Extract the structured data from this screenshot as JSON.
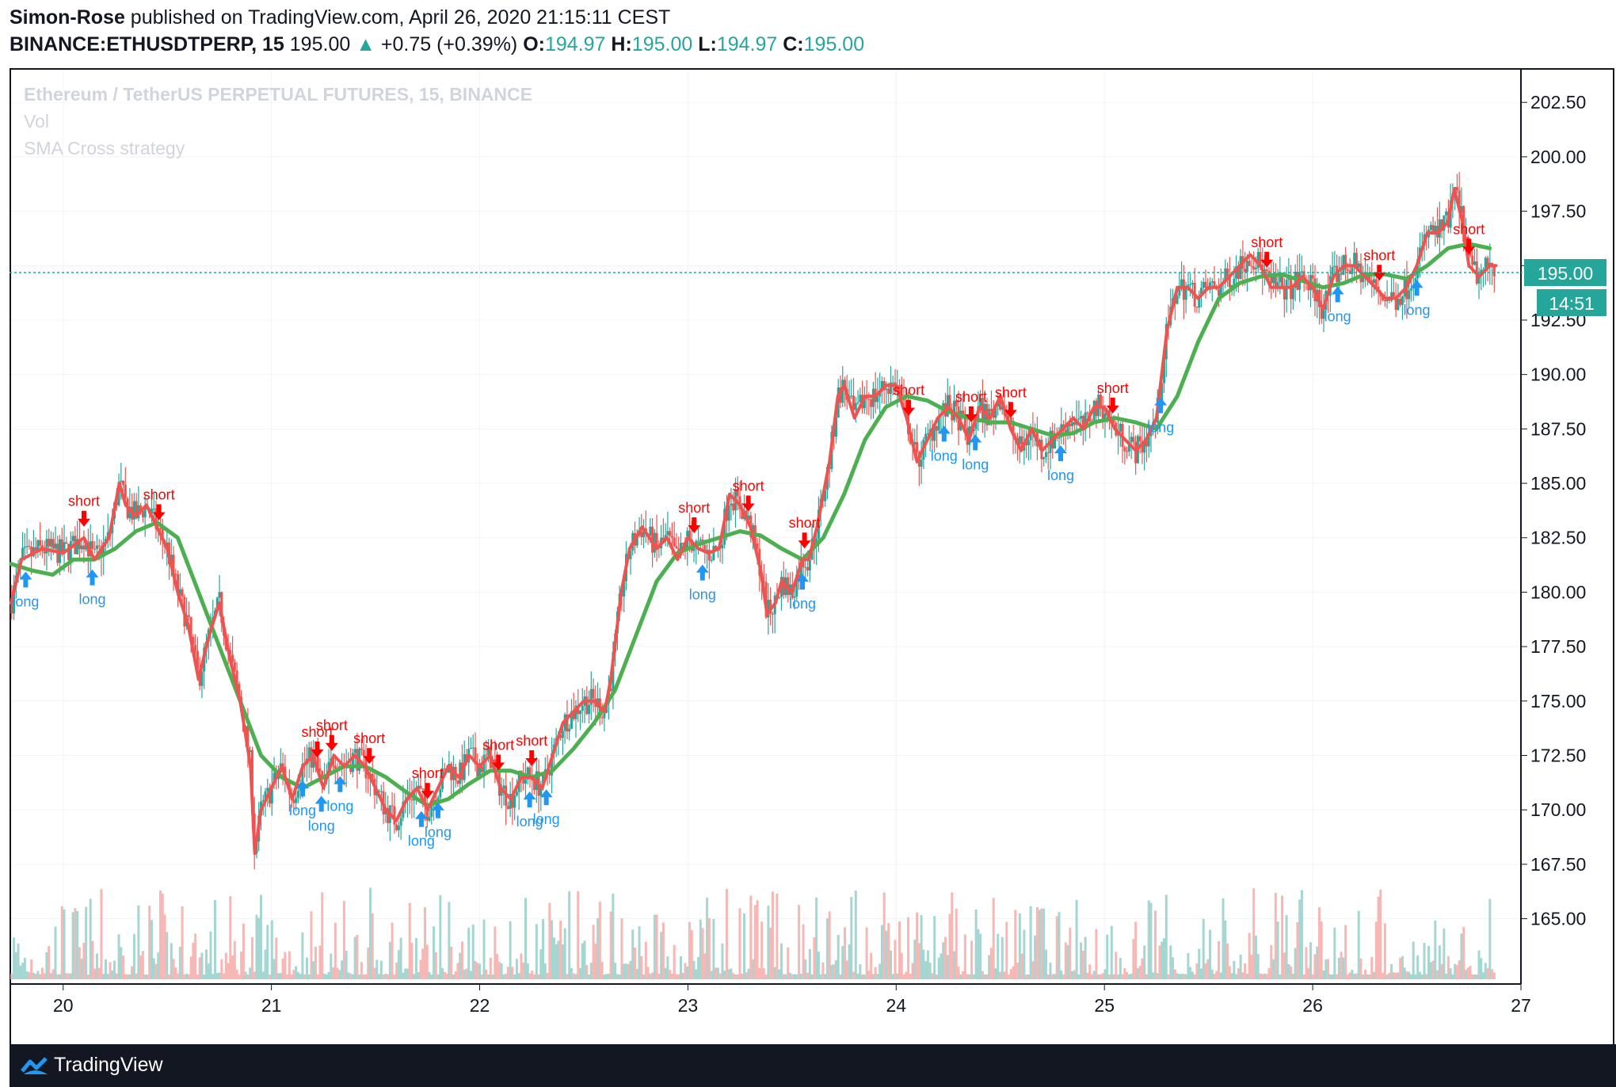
{
  "header": {
    "author": "Simon-Rose",
    "published_text": " published on TradingView.com, April 26, 2020 21:15:11 CEST",
    "symbol": "BINANCE:ETHUSDTPERP, 15",
    "last": "195.00",
    "change": "+0.75 (+0.39%)",
    "o_label": "O:",
    "o_value": "194.97",
    "h_label": "H:",
    "h_value": "195.00",
    "l_label": "L:",
    "l_value": "194.97",
    "c_label": "C:",
    "c_value": "195.00"
  },
  "legend": {
    "title": "Ethereum / TetherUS PERPETUAL FUTURES, 15, BINANCE",
    "volume": "Vol",
    "strategy": "SMA Cross strategy"
  },
  "price_badge": "195.00",
  "countdown_badge": "14:51",
  "footer": {
    "brand": "TradingView"
  },
  "colors": {
    "up": "#26a69a",
    "down": "#ef5350",
    "fast_ma": "#ef5350",
    "slow_ma": "#4caf50",
    "long": "#2196f3",
    "short": "#ff0000"
  },
  "chart_data": {
    "type": "line",
    "yticks": [
      "202.50",
      "200.00",
      "197.50",
      "195.00",
      "192.50",
      "190.00",
      "187.50",
      "185.00",
      "182.50",
      "180.00",
      "177.50",
      "175.00",
      "172.50",
      "170.00",
      "167.50",
      "165.00"
    ],
    "xticks": [
      "20",
      "21",
      "22",
      "23",
      "24",
      "25",
      "26",
      "27"
    ],
    "ylim": [
      162.0,
      204.0
    ],
    "xlim": [
      19.75,
      27.0
    ],
    "current_price": 195.0,
    "fast_ma": [
      [
        19.75,
        179.5
      ],
      [
        19.8,
        181.5
      ],
      [
        19.9,
        182.0
      ],
      [
        20.0,
        181.8
      ],
      [
        20.1,
        182.5
      ],
      [
        20.15,
        181.5
      ],
      [
        20.22,
        182.5
      ],
      [
        20.27,
        185.0
      ],
      [
        20.3,
        184.0
      ],
      [
        20.35,
        183.5
      ],
      [
        20.4,
        184.0
      ],
      [
        20.45,
        183.0
      ],
      [
        20.5,
        182.0
      ],
      [
        20.55,
        180.0
      ],
      [
        20.6,
        178.5
      ],
      [
        20.65,
        176.0
      ],
      [
        20.7,
        178.0
      ],
      [
        20.75,
        179.5
      ],
      [
        20.8,
        177.0
      ],
      [
        20.85,
        175.0
      ],
      [
        20.9,
        172.0
      ],
      [
        20.92,
        168.0
      ],
      [
        20.95,
        170.0
      ],
      [
        21.0,
        171.0
      ],
      [
        21.05,
        172.0
      ],
      [
        21.1,
        170.5
      ],
      [
        21.15,
        172.0
      ],
      [
        21.2,
        172.5
      ],
      [
        21.25,
        171.0
      ],
      [
        21.3,
        172.5
      ],
      [
        21.35,
        172.0
      ],
      [
        21.4,
        172.5
      ],
      [
        21.45,
        172.0
      ],
      [
        21.5,
        171.0
      ],
      [
        21.55,
        170.0
      ],
      [
        21.6,
        169.5
      ],
      [
        21.65,
        170.5
      ],
      [
        21.7,
        171.0
      ],
      [
        21.75,
        170.0
      ],
      [
        21.8,
        171.0
      ],
      [
        21.85,
        172.0
      ],
      [
        21.9,
        171.5
      ],
      [
        21.95,
        172.5
      ],
      [
        22.0,
        172.0
      ],
      [
        22.05,
        172.5
      ],
      [
        22.1,
        171.0
      ],
      [
        22.15,
        170.5
      ],
      [
        22.2,
        171.5
      ],
      [
        22.25,
        171.5
      ],
      [
        22.3,
        171.0
      ],
      [
        22.35,
        172.5
      ],
      [
        22.4,
        174.0
      ],
      [
        22.45,
        174.5
      ],
      [
        22.5,
        175.0
      ],
      [
        22.55,
        175.0
      ],
      [
        22.6,
        174.5
      ],
      [
        22.63,
        176.0
      ],
      [
        22.68,
        180.0
      ],
      [
        22.72,
        182.0
      ],
      [
        22.78,
        183.0
      ],
      [
        22.85,
        182.0
      ],
      [
        22.9,
        182.5
      ],
      [
        22.95,
        181.5
      ],
      [
        23.0,
        182.5
      ],
      [
        23.05,
        182.0
      ],
      [
        23.1,
        181.8
      ],
      [
        23.15,
        182.0
      ],
      [
        23.2,
        184.5
      ],
      [
        23.25,
        184.0
      ],
      [
        23.3,
        183.0
      ],
      [
        23.35,
        181.0
      ],
      [
        23.38,
        179.0
      ],
      [
        23.42,
        179.5
      ],
      [
        23.45,
        180.5
      ],
      [
        23.5,
        180.0
      ],
      [
        23.55,
        181.5
      ],
      [
        23.58,
        181.5
      ],
      [
        23.62,
        183.0
      ],
      [
        23.68,
        186.0
      ],
      [
        23.72,
        189.0
      ],
      [
        23.75,
        189.5
      ],
      [
        23.8,
        188.0
      ],
      [
        23.85,
        189.0
      ],
      [
        23.9,
        189.0
      ],
      [
        23.95,
        189.5
      ],
      [
        24.0,
        189.5
      ],
      [
        24.05,
        188.0
      ],
      [
        24.1,
        186.0
      ],
      [
        24.15,
        187.0
      ],
      [
        24.2,
        188.0
      ],
      [
        24.25,
        188.5
      ],
      [
        24.3,
        188.0
      ],
      [
        24.35,
        187.0
      ],
      [
        24.4,
        188.5
      ],
      [
        24.45,
        188.0
      ],
      [
        24.5,
        189.0
      ],
      [
        24.55,
        187.5
      ],
      [
        24.6,
        186.5
      ],
      [
        24.65,
        187.5
      ],
      [
        24.7,
        186.5
      ],
      [
        24.75,
        187.0
      ],
      [
        24.8,
        187.5
      ],
      [
        24.85,
        188.0
      ],
      [
        24.9,
        187.5
      ],
      [
        24.95,
        188.5
      ],
      [
        25.0,
        188.5
      ],
      [
        25.05,
        187.5
      ],
      [
        25.1,
        187.0
      ],
      [
        25.15,
        186.5
      ],
      [
        25.2,
        187.0
      ],
      [
        25.25,
        188.0
      ],
      [
        25.3,
        192.0
      ],
      [
        25.35,
        194.0
      ],
      [
        25.4,
        194.0
      ],
      [
        25.45,
        193.5
      ],
      [
        25.5,
        194.0
      ],
      [
        25.55,
        194.0
      ],
      [
        25.6,
        194.5
      ],
      [
        25.65,
        195.0
      ],
      [
        25.7,
        195.5
      ],
      [
        25.75,
        195.0
      ],
      [
        25.8,
        194.0
      ],
      [
        25.85,
        194.0
      ],
      [
        25.9,
        194.0
      ],
      [
        25.95,
        194.5
      ],
      [
        26.0,
        194.0
      ],
      [
        26.05,
        193.0
      ],
      [
        26.1,
        194.5
      ],
      [
        26.15,
        195.0
      ],
      [
        26.2,
        195.0
      ],
      [
        26.25,
        194.5
      ],
      [
        26.3,
        194.0
      ],
      [
        26.35,
        193.5
      ],
      [
        26.4,
        193.5
      ],
      [
        26.45,
        194.0
      ],
      [
        26.5,
        195.0
      ],
      [
        26.55,
        196.5
      ],
      [
        26.6,
        196.5
      ],
      [
        26.65,
        197.0
      ],
      [
        26.68,
        198.5
      ],
      [
        26.72,
        197.0
      ],
      [
        26.75,
        195.0
      ],
      [
        26.8,
        194.5
      ],
      [
        26.85,
        195.0
      ],
      [
        26.88,
        195.0
      ]
    ],
    "slow_ma": [
      [
        19.75,
        181.3
      ],
      [
        19.85,
        181.0
      ],
      [
        19.95,
        180.8
      ],
      [
        20.05,
        181.5
      ],
      [
        20.15,
        181.5
      ],
      [
        20.25,
        182.0
      ],
      [
        20.35,
        182.8
      ],
      [
        20.45,
        183.2
      ],
      [
        20.55,
        182.5
      ],
      [
        20.65,
        180.0
      ],
      [
        20.75,
        177.5
      ],
      [
        20.85,
        175.0
      ],
      [
        20.95,
        172.5
      ],
      [
        21.05,
        171.5
      ],
      [
        21.15,
        171.0
      ],
      [
        21.25,
        171.5
      ],
      [
        21.35,
        172.0
      ],
      [
        21.45,
        172.0
      ],
      [
        21.55,
        171.5
      ],
      [
        21.65,
        170.8
      ],
      [
        21.75,
        170.2
      ],
      [
        21.85,
        170.5
      ],
      [
        21.95,
        171.2
      ],
      [
        22.05,
        171.8
      ],
      [
        22.15,
        171.8
      ],
      [
        22.25,
        171.5
      ],
      [
        22.35,
        171.8
      ],
      [
        22.45,
        172.8
      ],
      [
        22.55,
        174.0
      ],
      [
        22.65,
        175.5
      ],
      [
        22.75,
        178.0
      ],
      [
        22.85,
        180.5
      ],
      [
        22.95,
        181.8
      ],
      [
        23.05,
        182.2
      ],
      [
        23.15,
        182.5
      ],
      [
        23.25,
        182.8
      ],
      [
        23.35,
        182.6
      ],
      [
        23.45,
        182.0
      ],
      [
        23.55,
        181.5
      ],
      [
        23.65,
        182.5
      ],
      [
        23.75,
        184.5
      ],
      [
        23.85,
        187.0
      ],
      [
        23.95,
        188.5
      ],
      [
        24.05,
        189.0
      ],
      [
        24.15,
        188.8
      ],
      [
        24.25,
        188.3
      ],
      [
        24.35,
        188.0
      ],
      [
        24.45,
        187.8
      ],
      [
        24.55,
        187.8
      ],
      [
        24.65,
        187.5
      ],
      [
        24.75,
        187.2
      ],
      [
        24.85,
        187.3
      ],
      [
        24.95,
        187.8
      ],
      [
        25.05,
        188.0
      ],
      [
        25.15,
        187.8
      ],
      [
        25.25,
        187.5
      ],
      [
        25.35,
        189.0
      ],
      [
        25.45,
        191.5
      ],
      [
        25.55,
        193.5
      ],
      [
        25.65,
        194.2
      ],
      [
        25.75,
        194.5
      ],
      [
        25.85,
        194.6
      ],
      [
        25.95,
        194.3
      ],
      [
        26.05,
        194.0
      ],
      [
        26.15,
        194.2
      ],
      [
        26.25,
        194.6
      ],
      [
        26.35,
        194.6
      ],
      [
        26.45,
        194.4
      ],
      [
        26.55,
        195.0
      ],
      [
        26.65,
        195.8
      ],
      [
        26.75,
        196.0
      ],
      [
        26.85,
        195.8
      ]
    ],
    "signals": {
      "long": [
        19.82,
        20.14,
        21.15,
        21.24,
        21.33,
        21.72,
        21.8,
        22.24,
        22.32,
        23.07,
        23.55,
        24.23,
        24.38,
        24.79,
        25.27,
        26.12,
        26.5
      ],
      "short": [
        20.1,
        20.46,
        21.22,
        21.29,
        21.47,
        21.75,
        22.09,
        22.25,
        23.03,
        23.29,
        23.56,
        24.06,
        24.36,
        24.55,
        25.04,
        25.78,
        26.32,
        26.75
      ]
    }
  }
}
